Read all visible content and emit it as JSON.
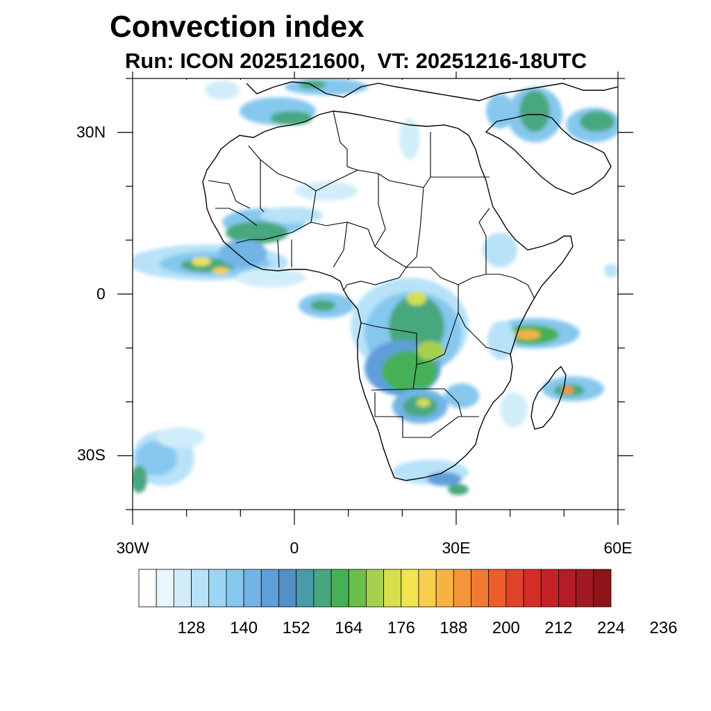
{
  "title": "Convection index",
  "subtitle": "Run: ICON 2025121600,  VT: 20251216-18UTC",
  "map": {
    "lon_range": [
      -30,
      60
    ],
    "lat_range": [
      -40,
      40
    ],
    "x_ticks": [
      {
        "lon": -30,
        "label": "30W"
      },
      {
        "lon": 0,
        "label": "0"
      },
      {
        "lon": 30,
        "label": "30E"
      },
      {
        "lon": 60,
        "label": "60E"
      }
    ],
    "y_ticks": [
      {
        "lat": 30,
        "label": "30N"
      },
      {
        "lat": 0,
        "label": "0"
      },
      {
        "lat": -30,
        "label": "30S"
      }
    ],
    "minor_lon_step": 10,
    "minor_lat_step": 10
  },
  "colorbar": {
    "colors": [
      "#ffffff",
      "#eaf6fd",
      "#d2edfa",
      "#b7e2f8",
      "#9dd6f4",
      "#86c7ee",
      "#72b4e6",
      "#5f9fda",
      "#5290c8",
      "#4a9aa8",
      "#46a77e",
      "#45b056",
      "#6cbe4a",
      "#a6d04d",
      "#d6e04d",
      "#f3e451",
      "#f8cf4d",
      "#f7b244",
      "#f5963a",
      "#f17a32",
      "#ec5e2c",
      "#e04428",
      "#d42e27",
      "#c52227",
      "#b41d25",
      "#a11a21",
      "#8d1519"
    ],
    "labels": [
      "128",
      "140",
      "152",
      "164",
      "176",
      "188",
      "200",
      "212",
      "224",
      "236"
    ],
    "label_positions": [
      3,
      6,
      9,
      12,
      15,
      18,
      21,
      24,
      27,
      30
    ]
  }
}
